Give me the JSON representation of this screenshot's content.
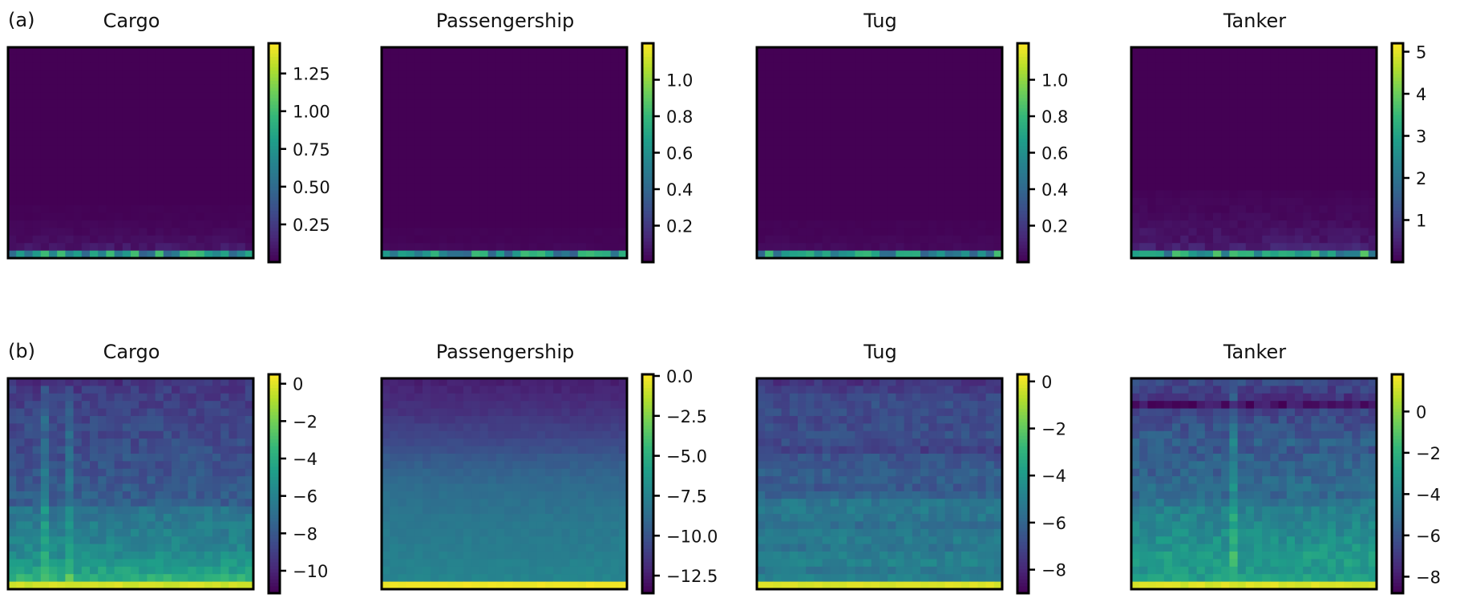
{
  "figure": {
    "row_labels": [
      "(a)",
      "(b)"
    ]
  },
  "colors": {
    "viridis": [
      "#440154",
      "#482878",
      "#3e4989",
      "#31688e",
      "#26828e",
      "#1f9e89",
      "#35b779",
      "#6ece58",
      "#b5de2b",
      "#fde725"
    ]
  },
  "chart_data": [
    {
      "type": "heatmap",
      "row": 0,
      "col": 0,
      "title": "Cargo",
      "colorbar": {
        "min": 0.0,
        "max": 1.45,
        "ticks": [
          0.25,
          0.5,
          0.75,
          1.0,
          1.25
        ],
        "tick_labels": [
          "0.25",
          "0.50",
          "0.75",
          "1.00",
          "1.25"
        ]
      },
      "profile": [
        0,
        0,
        0,
        0,
        0,
        0,
        0,
        0,
        0,
        0,
        0,
        0,
        0,
        0,
        0,
        0,
        0,
        0,
        0,
        0,
        0,
        0.01,
        0.01,
        0.02,
        0.03,
        0.05,
        0.09,
        0.75
      ],
      "pattern": "mostly-zero"
    },
    {
      "type": "heatmap",
      "row": 0,
      "col": 1,
      "title": "Passengership",
      "colorbar": {
        "min": 0.0,
        "max": 1.2,
        "ticks": [
          0.2,
          0.4,
          0.6,
          0.8,
          1.0
        ],
        "tick_labels": [
          "0.2",
          "0.4",
          "0.6",
          "0.8",
          "1.0"
        ]
      },
      "profile": [
        0,
        0,
        0,
        0,
        0,
        0,
        0,
        0,
        0,
        0,
        0,
        0,
        0,
        0,
        0,
        0,
        0,
        0,
        0,
        0,
        0,
        0,
        0,
        0,
        0.01,
        0.01,
        0.02,
        0.6
      ],
      "pattern": "mostly-zero"
    },
    {
      "type": "heatmap",
      "row": 0,
      "col": 2,
      "title": "Tug",
      "colorbar": {
        "min": 0.0,
        "max": 1.2,
        "ticks": [
          0.2,
          0.4,
          0.6,
          0.8,
          1.0
        ],
        "tick_labels": [
          "0.2",
          "0.4",
          "0.6",
          "0.8",
          "1.0"
        ]
      },
      "profile": [
        0,
        0,
        0,
        0,
        0,
        0,
        0,
        0,
        0,
        0,
        0,
        0,
        0,
        0,
        0,
        0,
        0,
        0,
        0,
        0,
        0,
        0,
        0,
        0.01,
        0.01,
        0.02,
        0.03,
        0.6
      ],
      "pattern": "mostly-zero"
    },
    {
      "type": "heatmap",
      "row": 0,
      "col": 3,
      "title": "Tanker",
      "colorbar": {
        "min": 0.0,
        "max": 5.2,
        "ticks": [
          1,
          2,
          3,
          4,
          5
        ],
        "tick_labels": [
          "1",
          "2",
          "3",
          "4",
          "5"
        ]
      },
      "profile": [
        0,
        0,
        0,
        0,
        0,
        0,
        0,
        0,
        0,
        0,
        0,
        0,
        0,
        0,
        0,
        0,
        0,
        0,
        0,
        0.05,
        0.08,
        0.1,
        0.13,
        0.18,
        0.25,
        0.3,
        0.45,
        2.8
      ],
      "pattern": "mostly-zero"
    },
    {
      "type": "heatmap",
      "row": 1,
      "col": 0,
      "title": "Cargo",
      "colorbar": {
        "min": -11.2,
        "max": 0.5,
        "ticks": [
          0,
          -2,
          -4,
          -6,
          -8,
          -10
        ],
        "tick_labels": [
          "0",
          "−2",
          "−4",
          "−6",
          "−8",
          "−10"
        ]
      },
      "profile": [
        -9.5,
        -9.2,
        -9.0,
        -8.9,
        -8.8,
        -8.7,
        -8.6,
        -8.6,
        -8.5,
        -8.4,
        -8.3,
        -8.2,
        -8.1,
        -8.0,
        -7.9,
        -7.8,
        -7.7,
        -6.6,
        -6.5,
        -6.3,
        -6.2,
        -6.0,
        -5.8,
        -5.5,
        -5.1,
        -4.6,
        -3.8,
        -0.3
      ],
      "pattern": "speckled",
      "stripes": [
        4,
        7
      ]
    },
    {
      "type": "heatmap",
      "row": 1,
      "col": 1,
      "title": "Passengership",
      "colorbar": {
        "min": -13.6,
        "max": 0.1,
        "ticks": [
          0.0,
          -2.5,
          -5.0,
          -7.5,
          -10.0,
          -12.5
        ],
        "tick_labels": [
          "0.0",
          "−2.5",
          "−5.0",
          "−7.5",
          "−10.0",
          "−12.5"
        ]
      },
      "profile": [
        -12.4,
        -12.2,
        -12.0,
        -11.8,
        -11.6,
        -11.3,
        -11.0,
        -10.8,
        -10.5,
        -10.2,
        -9.8,
        -9.5,
        -9.2,
        -9.0,
        -8.8,
        -8.6,
        -8.5,
        -8.4,
        -8.2,
        -8.1,
        -8.0,
        -7.9,
        -7.8,
        -7.7,
        -7.6,
        -7.5,
        -7.4,
        -0.2
      ],
      "pattern": "smooth"
    },
    {
      "type": "heatmap",
      "row": 1,
      "col": 2,
      "title": "Tug",
      "colorbar": {
        "min": -9.0,
        "max": 0.3,
        "ticks": [
          0,
          -2,
          -4,
          -6,
          -8
        ],
        "tick_labels": [
          "0",
          "−2",
          "−4",
          "−6",
          "−8"
        ]
      },
      "profile": [
        -7.6,
        -7.3,
        -7.0,
        -6.8,
        -6.8,
        -6.9,
        -6.8,
        -6.7,
        -6.9,
        -7.2,
        -6.6,
        -6.4,
        -6.2,
        -6.3,
        -6.4,
        -6.1,
        -5.3,
        -5.2,
        -5.3,
        -5.6,
        -5.2,
        -5.1,
        -5.4,
        -5.0,
        -4.9,
        -5.3,
        -5.0,
        -0.2
      ],
      "pattern": "banded"
    },
    {
      "type": "heatmap",
      "row": 1,
      "col": 3,
      "title": "Tanker",
      "colorbar": {
        "min": -8.8,
        "max": 1.8,
        "ticks": [
          0,
          -2,
          -4,
          -6,
          -8
        ],
        "tick_labels": [
          "0",
          "−2",
          "−4",
          "−6",
          "−8"
        ]
      },
      "profile": [
        -6.4,
        -6.8,
        -7.2,
        -8.3,
        -6.6,
        -6.3,
        -6.1,
        -5.9,
        -5.6,
        -5.9,
        -5.6,
        -5.3,
        -5.5,
        -5.2,
        -5.0,
        -5.2,
        -4.6,
        -4.2,
        -4.0,
        -3.9,
        -3.7,
        -3.5,
        -3.3,
        -3.0,
        -3.0,
        -3.2,
        -2.9,
        1.2
      ],
      "pattern": "speckled",
      "stripes": [
        12
      ]
    }
  ]
}
